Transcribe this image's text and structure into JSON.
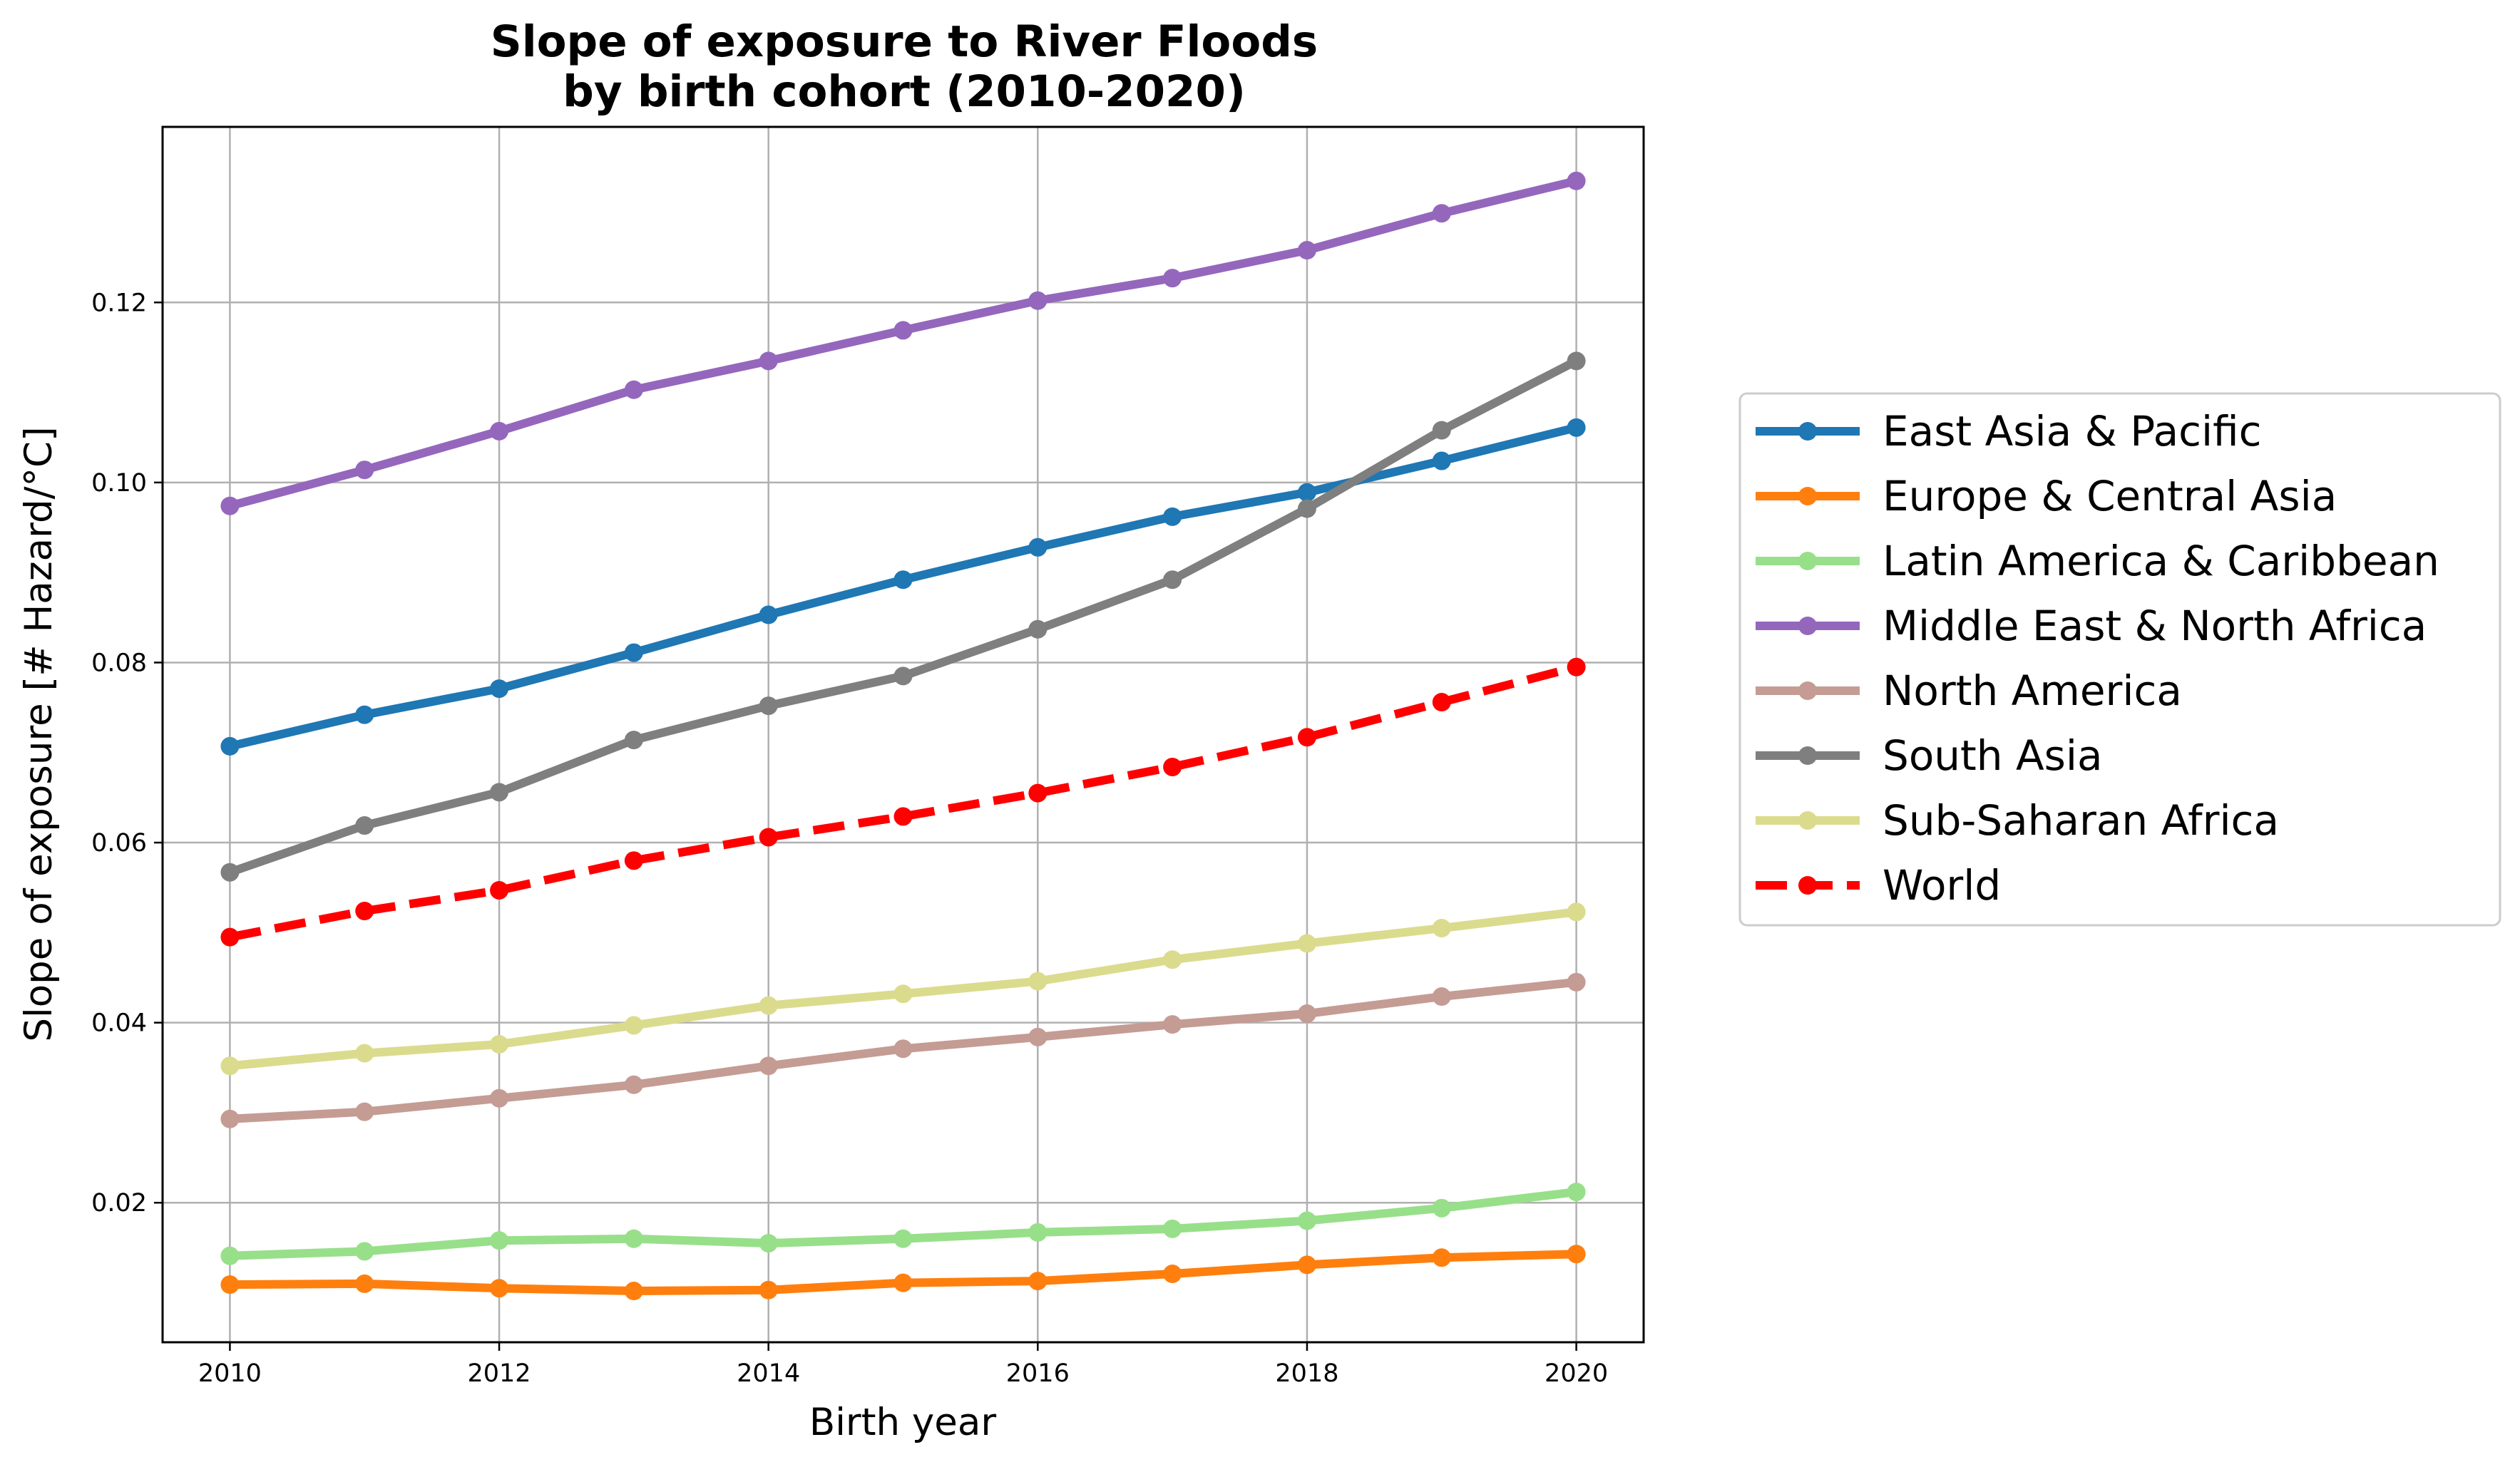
{
  "chart_data": {
    "type": "line",
    "title": [
      "Slope of exposure to River Floods",
      "by birth cohort (2010-2020)"
    ],
    "xlabel": "Birth year",
    "ylabel": "Slope of exposure [# Hazard/°C]",
    "x": [
      2010,
      2011,
      2012,
      2013,
      2014,
      2015,
      2016,
      2017,
      2018,
      2019,
      2020
    ],
    "xlim": [
      2009.5,
      2020.5
    ],
    "ylim": [
      0.0045,
      0.1395
    ],
    "xticks": [
      2010,
      2012,
      2014,
      2016,
      2018,
      2020
    ],
    "yticks": [
      0.02,
      0.04,
      0.06,
      0.08,
      0.1,
      0.12
    ],
    "ytick_labels": [
      "0.02",
      "0.04",
      "0.06",
      "0.08",
      "0.10",
      "0.12"
    ],
    "grid": true,
    "legend_position": "outside-right",
    "series": [
      {
        "name": "East Asia & Pacific",
        "color": "#1f77b4",
        "dashed": false,
        "values": [
          0.0707,
          0.0742,
          0.0771,
          0.0811,
          0.0853,
          0.0892,
          0.0928,
          0.0962,
          0.0989,
          0.1024,
          0.1061
        ]
      },
      {
        "name": "Europe & Central Asia",
        "color": "#ff7f0e",
        "dashed": false,
        "values": [
          0.0109,
          0.011,
          0.0105,
          0.0102,
          0.0103,
          0.0111,
          0.0113,
          0.0121,
          0.0131,
          0.0139,
          0.0143
        ]
      },
      {
        "name": "Latin America & Caribbean",
        "color": "#98df8a",
        "dashed": false,
        "values": [
          0.0141,
          0.0146,
          0.0158,
          0.016,
          0.0155,
          0.016,
          0.0167,
          0.0171,
          0.018,
          0.0194,
          0.0212
        ]
      },
      {
        "name": "Middle East & North Africa",
        "color": "#9467bd",
        "dashed": false,
        "values": [
          0.0974,
          0.1014,
          0.1057,
          0.1103,
          0.1135,
          0.1169,
          0.1202,
          0.1227,
          0.1258,
          0.1299,
          0.1335
        ]
      },
      {
        "name": "North America",
        "color": "#c49c94",
        "dashed": false,
        "values": [
          0.0293,
          0.0301,
          0.0316,
          0.0331,
          0.0352,
          0.0371,
          0.0384,
          0.0398,
          0.041,
          0.0429,
          0.0445
        ]
      },
      {
        "name": "South Asia",
        "color": "#7f7f7f",
        "dashed": false,
        "values": [
          0.0567,
          0.0619,
          0.0656,
          0.0714,
          0.0752,
          0.0785,
          0.0837,
          0.0892,
          0.0971,
          0.1058,
          0.1135
        ]
      },
      {
        "name": "Sub-Saharan Africa",
        "color": "#dbdb8d",
        "dashed": false,
        "values": [
          0.0352,
          0.0366,
          0.0376,
          0.0397,
          0.0419,
          0.0432,
          0.0446,
          0.047,
          0.0488,
          0.0505,
          0.0523
        ]
      },
      {
        "name": "World",
        "color": "#ff0000",
        "dashed": true,
        "values": [
          0.0495,
          0.0524,
          0.0547,
          0.058,
          0.0606,
          0.0629,
          0.0655,
          0.0684,
          0.0717,
          0.0756,
          0.0795
        ]
      }
    ]
  }
}
